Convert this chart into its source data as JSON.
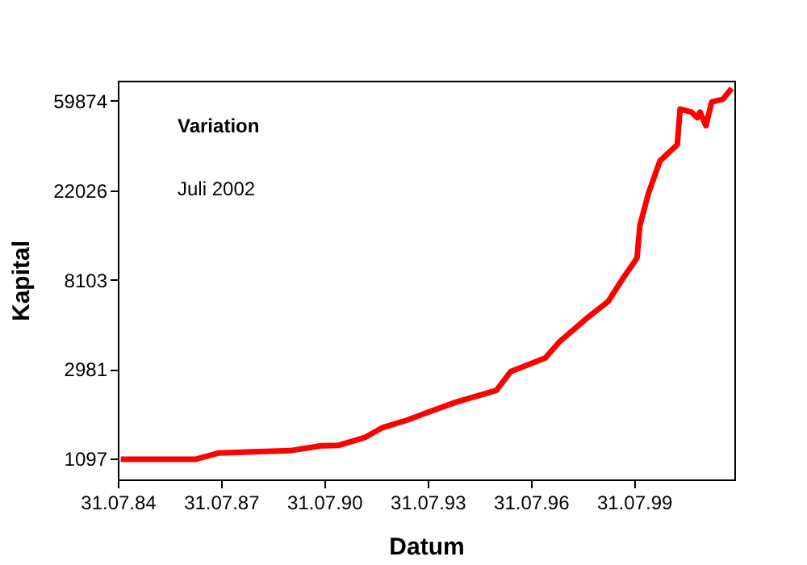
{
  "chart_data": {
    "type": "line",
    "xlabel": "Datum",
    "ylabel": "Kapital",
    "annotations": [
      "Variation",
      "Juli 2002"
    ],
    "log": "y",
    "grid": false,
    "xlim": [
      "1984-07-31",
      "2002-06-30"
    ],
    "xticks": [
      {
        "value": "1984-07-31",
        "label": "31.07.84"
      },
      {
        "value": "1987-07-31",
        "label": "31.07.87"
      },
      {
        "value": "1990-07-31",
        "label": "31.07.90"
      },
      {
        "value": "1993-07-31",
        "label": "31.07.93"
      },
      {
        "value": "1996-07-31",
        "label": "31.07.96"
      },
      {
        "value": "1999-07-31",
        "label": "31.07.99"
      }
    ],
    "ylim": [
      870,
      75000
    ],
    "yticks": [
      1097,
      2981,
      8103,
      22026,
      59874
    ],
    "x": [
      "1984-09",
      "1986-11",
      "1987-07",
      "1989-08",
      "1990-07",
      "1991-01",
      "1991-10",
      "1992-04",
      "1993-01",
      "1993-07",
      "1994-06",
      "1995-08",
      "1996-01",
      "1997-01",
      "1997-06",
      "1998-03",
      "1998-11",
      "1999-04",
      "1999-09",
      "1999-10",
      "2000-01",
      "2000-05",
      "2000-11",
      "2000-12",
      "2001-04",
      "2001-06",
      "2001-07",
      "2001-09",
      "2001-11",
      "2002-03",
      "2002-06"
    ],
    "series": [
      {
        "color": "#ff0000",
        "values": [
          1090,
          1090,
          1168,
          1200,
          1268,
          1275,
          1388,
          1547,
          1692,
          1819,
          2066,
          2355,
          2910,
          3384,
          4058,
          5200,
          6380,
          8180,
          10340,
          14850,
          21330,
          30600,
          36700,
          54600,
          52800,
          49600,
          52800,
          45300,
          59100,
          61000,
          68800
        ]
      }
    ]
  }
}
